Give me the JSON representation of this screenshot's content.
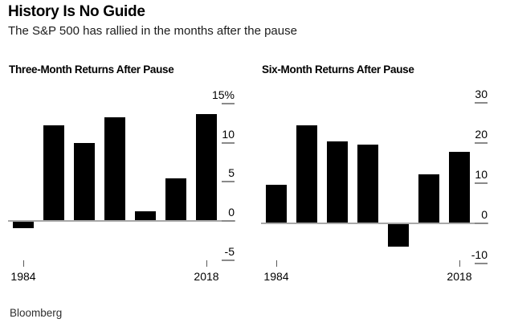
{
  "header": {
    "title": "History Is No Guide",
    "subtitle": "The S&P 500 has rallied in the months after the pause"
  },
  "source": "Bloomberg",
  "colors": {
    "bar": "#000000",
    "axis_line": "#a8a8a8",
    "tick_dash": "#8a8a8a",
    "text": "#000000",
    "background": "#ffffff"
  },
  "chart_data": [
    {
      "type": "bar",
      "title": "Three-Month Returns After Pause",
      "categories": [
        "1984",
        "",
        "",
        "",
        "",
        "",
        "2018"
      ],
      "values": [
        -0.9,
        12.2,
        9.9,
        13.2,
        1.2,
        5.4,
        13.6
      ],
      "unit": "%",
      "ylim": [
        -5,
        15
      ],
      "yticks": [
        15,
        10,
        5,
        0,
        -5
      ],
      "ytick_labels": [
        "15%",
        "10",
        "5",
        "0",
        "-5"
      ],
      "xtick_labels": [
        "1984",
        "2018"
      ],
      "xlabel": "",
      "ylabel": "",
      "grid": "off",
      "legend": "none",
      "axis_side": "right"
    },
    {
      "type": "bar",
      "title": "Six-Month Returns After Pause",
      "categories": [
        "1984",
        "",
        "",
        "",
        "",
        "",
        "2018"
      ],
      "values": [
        9.7,
        24.4,
        20.4,
        19.6,
        -5.8,
        12.2,
        17.8
      ],
      "unit": "%",
      "ylim": [
        -10,
        30
      ],
      "yticks": [
        30,
        20,
        10,
        0,
        -10
      ],
      "ytick_labels": [
        "30",
        "20",
        "10",
        "0",
        "-10"
      ],
      "xtick_labels": [
        "1984",
        "2018"
      ],
      "xlabel": "",
      "ylabel": "",
      "grid": "off",
      "legend": "none",
      "axis_side": "right"
    }
  ]
}
